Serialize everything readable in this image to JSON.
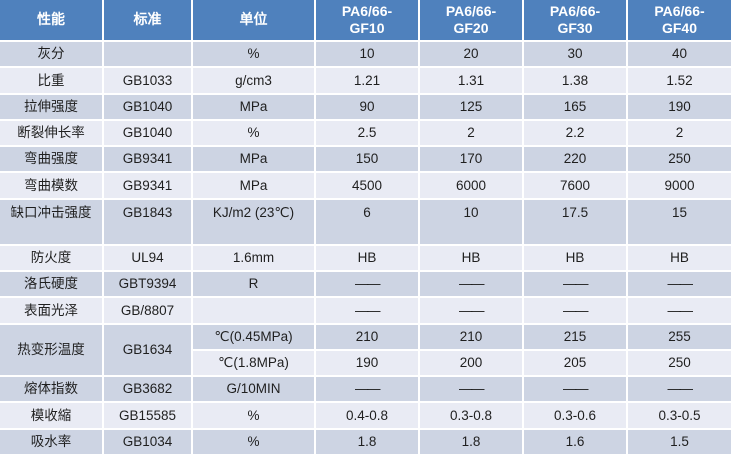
{
  "colors": {
    "header_bg": "#4f81bd",
    "band_dark": "#cdd4e3",
    "band_light": "#e9ebf4",
    "grid": "#ffffff",
    "text": "#1f1f1f",
    "header_text": "#ffffff"
  },
  "chart_data": {
    "type": "table",
    "columns": [
      "性能",
      "标准",
      "单位",
      "PA6/66-\nGF10",
      "PA6/66-\nGF20",
      "PA6/66-\nGF30",
      "PA6/66-\nGF40"
    ],
    "rows": [
      {
        "property": "灰分",
        "standard": "",
        "unit": "%",
        "values": [
          "10",
          "20",
          "30",
          "40"
        ]
      },
      {
        "property": "比重",
        "standard": "GB1033",
        "unit": "g/cm3",
        "values": [
          "1.21",
          "1.31",
          "1.38",
          "1.52"
        ]
      },
      {
        "property": "拉伸强度",
        "standard": "GB1040",
        "unit": "MPa",
        "values": [
          "90",
          "125",
          "165",
          "190"
        ]
      },
      {
        "property": "断裂伸长率",
        "standard": "GB1040",
        "unit": "%",
        "values": [
          "2.5",
          "2",
          "2.2",
          "2"
        ]
      },
      {
        "property": "弯曲强度",
        "standard": "GB9341",
        "unit": "MPa",
        "values": [
          "150",
          "170",
          "220",
          "250"
        ]
      },
      {
        "property": "弯曲模数",
        "standard": "GB9341",
        "unit": "MPa",
        "values": [
          "4500",
          "6000",
          "7600",
          "9000"
        ]
      },
      {
        "property": "缺口冲击强度",
        "standard": "GB1843",
        "unit": "KJ/m2 (23℃)",
        "values": [
          "6",
          "10",
          "17.5",
          "15"
        ],
        "tall": true
      },
      {
        "property": "防火度",
        "standard": "UL94",
        "unit": "1.6mm",
        "values": [
          "HB",
          "HB",
          "HB",
          "HB"
        ]
      },
      {
        "property": "洛氏硬度",
        "standard": "GBT9394",
        "unit": "R",
        "values": [
          "——",
          "——",
          "——",
          "——"
        ]
      },
      {
        "property": "表面光泽",
        "standard": "GB/8807",
        "unit": "",
        "values": [
          "——",
          "——",
          "——",
          "——"
        ]
      },
      {
        "property": "热变形温度",
        "standard": "GB1634",
        "subrows": [
          {
            "unit": "℃(0.45MPa)",
            "values": [
              "210",
              "210",
              "215",
              "255"
            ]
          },
          {
            "unit": "℃(1.8MPa)",
            "values": [
              "190",
              "200",
              "205",
              "250"
            ]
          }
        ]
      },
      {
        "property": "熔体指数",
        "standard": "GB3682",
        "unit": "G/10MIN",
        "values": [
          "——",
          "——",
          "——",
          "——"
        ]
      },
      {
        "property": "模收縮",
        "standard": "GB15585",
        "unit": "%",
        "values": [
          "0.4-0.8",
          "0.3-0.8",
          "0.3-0.6",
          "0.3-0.5"
        ]
      },
      {
        "property": "吸水率",
        "standard": "GB1034",
        "unit": "%",
        "values": [
          "1.8",
          "1.8",
          "1.6",
          "1.5"
        ]
      }
    ]
  }
}
